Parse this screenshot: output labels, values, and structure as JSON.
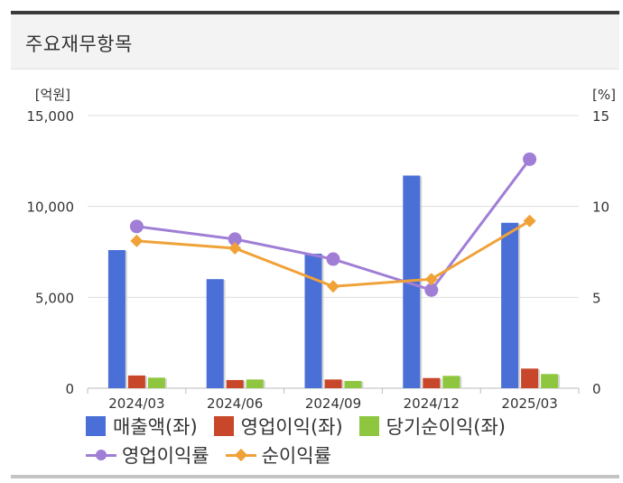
{
  "panel": {
    "title": "주요재무항목"
  },
  "chart_data": {
    "type": "bar",
    "categories": [
      "2024/03",
      "2024/06",
      "2024/09",
      "2024/12",
      "2025/03"
    ],
    "left_axis": {
      "unit_label": "[억원]",
      "min": 0,
      "max": 15000,
      "ticks": [
        0,
        5000,
        10000,
        15000
      ],
      "tick_labels": [
        "0",
        "5,000",
        "10,000",
        "15,000"
      ]
    },
    "right_axis": {
      "unit_label": "[%]",
      "min": 0,
      "max": 15,
      "ticks": [
        0,
        5,
        10,
        15
      ],
      "tick_labels": [
        "0",
        "5",
        "10",
        "15"
      ]
    },
    "grid": true,
    "legend_position": "bottom",
    "bar_series": [
      {
        "name": "매출액(좌)",
        "color": "#4a6fd6",
        "values": [
          7600,
          6000,
          7400,
          11700,
          9100
        ]
      },
      {
        "name": "영업이익(좌)",
        "color": "#c8472a",
        "values": [
          700,
          450,
          480,
          560,
          1080
        ]
      },
      {
        "name": "당기순이익(좌)",
        "color": "#8fc640",
        "values": [
          580,
          480,
          400,
          680,
          780
        ]
      }
    ],
    "line_series": [
      {
        "name": "영업이익률",
        "color": "#a07ed6",
        "marker": "circle",
        "values": [
          8.9,
          8.2,
          7.1,
          5.4,
          12.6
        ]
      },
      {
        "name": "순이익률",
        "color": "#f0a238",
        "marker": "diamond",
        "values": [
          8.1,
          7.7,
          5.6,
          6.0,
          9.2
        ]
      }
    ]
  }
}
